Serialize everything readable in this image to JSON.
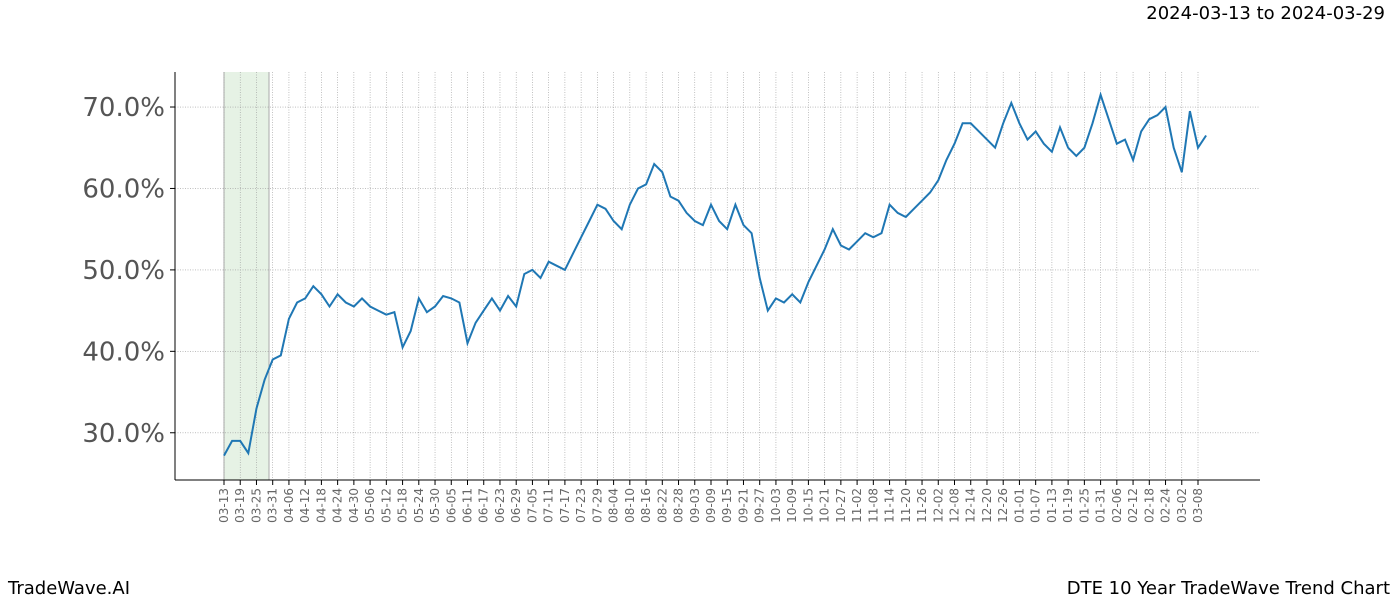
{
  "chart_data": {
    "type": "line",
    "header": "2024-03-13 to 2024-03-29",
    "footer_left": "TradeWave.AI",
    "footer_right": "DTE 10 Year TradeWave Trend Chart",
    "categories": [
      "03-13",
      null,
      "03-19",
      null,
      "03-25",
      null,
      "03-31",
      null,
      "04-06",
      null,
      "04-12",
      null,
      "04-18",
      null,
      "04-24",
      null,
      "04-30",
      null,
      "05-06",
      null,
      "05-12",
      null,
      "05-18",
      null,
      "05-24",
      null,
      "05-30",
      null,
      "06-05",
      null,
      "06-11",
      null,
      "06-17",
      null,
      "06-23",
      null,
      "06-29",
      null,
      "07-05",
      null,
      "07-11",
      null,
      "07-17",
      null,
      "07-23",
      null,
      "07-29",
      null,
      "08-04",
      null,
      "08-10",
      null,
      "08-16",
      null,
      "08-22",
      null,
      "08-28",
      null,
      "09-03",
      null,
      "09-09",
      null,
      "09-15",
      null,
      "09-21",
      null,
      "09-27",
      null,
      "10-03",
      null,
      "10-09",
      null,
      "10-15",
      null,
      "10-21",
      null,
      "10-27",
      null,
      "11-02",
      null,
      "11-08",
      null,
      "11-14",
      null,
      "11-20",
      null,
      "11-26",
      null,
      "12-02",
      null,
      "12-08",
      null,
      "12-14",
      null,
      "12-20",
      null,
      "12-26",
      null,
      "01-01",
      null,
      "01-07",
      null,
      "01-13",
      null,
      "01-19",
      null,
      "01-25",
      null,
      "01-31",
      null,
      "02-06",
      null,
      "02-12",
      null,
      "02-18",
      null,
      "02-24",
      null,
      "03-02",
      null,
      "03-08",
      null
    ],
    "series": [
      {
        "color": "#1f77b4",
        "values": [
          27.2,
          29.0,
          29.0,
          27.5,
          33.0,
          36.5,
          39.0,
          39.5,
          44.0,
          46.0,
          46.5,
          48.0,
          47.0,
          45.5,
          47.0,
          46.0,
          45.5,
          46.5,
          45.5,
          45.0,
          44.5,
          44.8,
          40.5,
          42.5,
          46.5,
          44.8,
          45.5,
          46.8,
          46.5,
          46.0,
          41.0,
          43.5,
          45.0,
          46.5,
          45.0,
          46.8,
          45.5,
          49.5,
          50.0,
          49.0,
          51.0,
          50.5,
          50.0,
          52.0,
          54.0,
          56.0,
          58.0,
          57.5,
          56.0,
          55.0,
          58.0,
          60.0,
          60.5,
          63.0,
          62.0,
          59.0,
          58.5,
          57.0,
          56.0,
          55.5,
          58.0,
          56.0,
          55.0,
          58.0,
          55.5,
          54.5,
          49.0,
          45.0,
          46.5,
          46.0,
          47.0,
          46.0,
          48.5,
          50.5,
          52.5,
          55.0,
          53.0,
          52.5,
          53.5,
          54.5,
          54.0,
          54.5,
          58.0,
          57.0,
          56.5,
          57.5,
          58.5,
          59.5,
          61.0,
          63.5,
          65.5,
          68.0,
          68.0,
          67.0,
          66.0,
          65.0,
          68.0,
          70.5,
          68.0,
          66.0,
          67.0,
          65.5,
          64.5,
          67.5,
          65.0,
          64.0,
          65.0,
          68.0,
          71.5,
          68.5,
          65.5,
          66.0,
          63.5,
          67.0,
          68.5,
          69.0,
          70.0,
          65.0,
          62.0,
          69.5,
          65.0,
          66.5
        ]
      }
    ],
    "ylim": [
      24.2,
      74.3
    ],
    "yticks": [
      {
        "value": 30,
        "label": "30.0%"
      },
      {
        "value": 40,
        "label": "40.0%"
      },
      {
        "value": 50,
        "label": "50.0%"
      },
      {
        "value": 60,
        "label": "60.0%"
      },
      {
        "value": 70,
        "label": "70.0%"
      }
    ],
    "grid": true
  }
}
